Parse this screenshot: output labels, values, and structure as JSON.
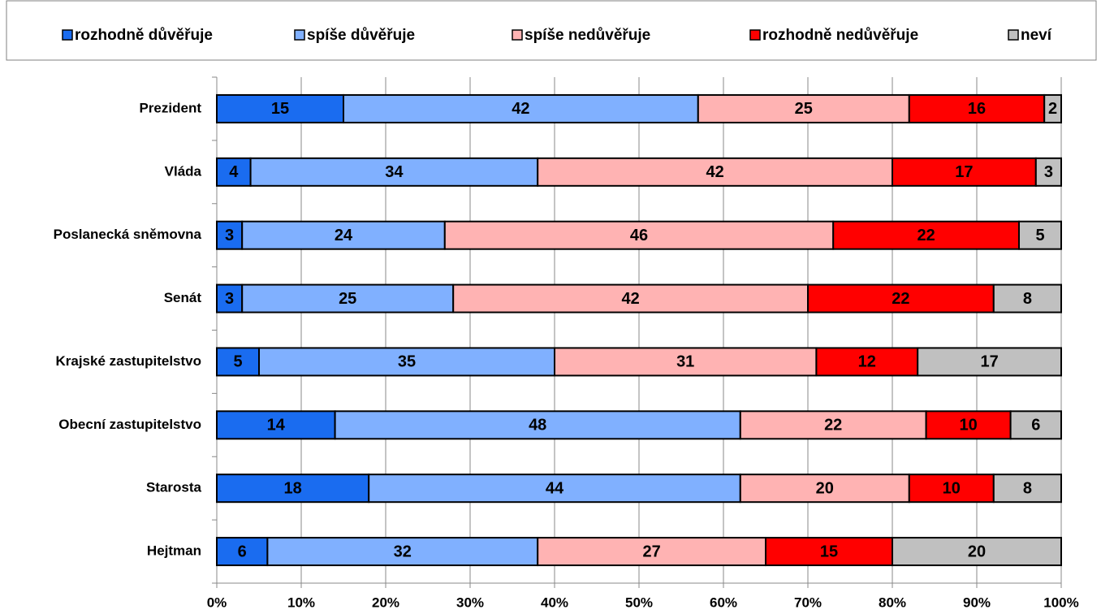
{
  "chart_data": {
    "type": "stacked-bar-horizontal",
    "categories": [
      "Prezident",
      "Vláda",
      "Poslanecká sněmovna",
      "Senát",
      "Krajské zastupitelstvo",
      "Obecní zastupitelstvo",
      "Starosta",
      "Hejtman"
    ],
    "series": [
      {
        "name": "rozhodně důvěřuje",
        "color": "#1a6cf0",
        "values": [
          15,
          4,
          3,
          3,
          5,
          14,
          18,
          6
        ]
      },
      {
        "name": "spíše důvěřuje",
        "color": "#80b0ff",
        "values": [
          42,
          34,
          24,
          25,
          35,
          48,
          44,
          32
        ]
      },
      {
        "name": "spíše nedůvěřuje",
        "color": "#ffb3b3",
        "values": [
          25,
          42,
          46,
          42,
          31,
          22,
          20,
          27
        ]
      },
      {
        "name": "rozhodně nedůvěřuje",
        "color": "#ff0000",
        "values": [
          16,
          17,
          22,
          22,
          12,
          10,
          10,
          15
        ]
      },
      {
        "name": "neví",
        "color": "#c0c0c0",
        "values": [
          2,
          3,
          5,
          8,
          17,
          6,
          8,
          20
        ]
      }
    ],
    "xlim": [
      0,
      100
    ],
    "xticks": [
      {
        "value": 0,
        "label": "0%"
      },
      {
        "value": 10,
        "label": "10%"
      },
      {
        "value": 20,
        "label": "20%"
      },
      {
        "value": 30,
        "label": "30%"
      },
      {
        "value": 40,
        "label": "40%"
      },
      {
        "value": 50,
        "label": "50%"
      },
      {
        "value": 60,
        "label": "60%"
      },
      {
        "value": 70,
        "label": "70%"
      },
      {
        "value": 80,
        "label": "80%"
      },
      {
        "value": 90,
        "label": "90%"
      },
      {
        "value": 100,
        "label": "100%"
      }
    ],
    "grid": true,
    "legend": "top"
  }
}
